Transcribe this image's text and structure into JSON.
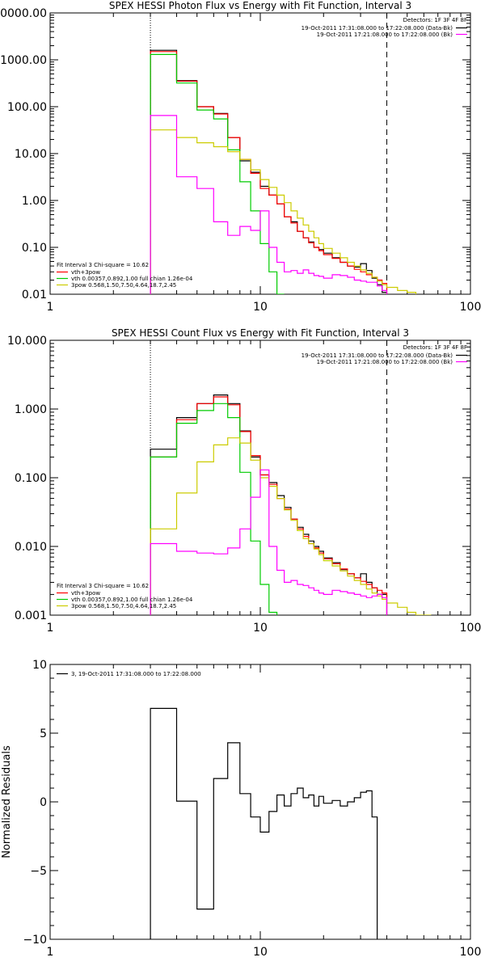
{
  "chart_data": [
    {
      "type": "line",
      "title": "SPEX HESSI Photon Flux vs Energy with Fit Function, Interval 3",
      "xscale": "log",
      "yscale": "log",
      "xlim": [
        1,
        100
      ],
      "ylim": [
        0.01,
        10000
      ],
      "x_ticks": [
        "1",
        "10",
        "100"
      ],
      "y_ticks": [
        "0.01",
        "0.10",
        "1.00",
        "10.00",
        "100.00",
        "1000.00",
        "10000.00"
      ],
      "legend_top": {
        "header": "Detectors: 1F 3F 4F 8F",
        "items": [
          {
            "text": "19-Oct-2011 17:31:08.000 to 17:22:08.000 (Data-Bk)",
            "color": "#000000"
          },
          {
            "text": "19-Oct-2011 17:21:08.000 to 17:22:08.000 (Bk)",
            "color": "#ff00ff"
          }
        ]
      },
      "legend_bottom": {
        "header": "Fit Interval 3   Chi-square = 10.62",
        "items": [
          {
            "text": "vth+3pow",
            "color": "#ff0000"
          },
          {
            "text": "vth 0.00357,0.892,1.00   full chian 1.26e-04",
            "color": "#00cc00"
          },
          {
            "text": "3pow 0.568,1.50,7.50,4.64,18.7,2.45",
            "color": "#cccc00"
          }
        ]
      },
      "reference_lines": [
        {
          "x": 3,
          "style": "dotted"
        },
        {
          "x": 40,
          "style": "dashed"
        }
      ],
      "edges": [
        3,
        4,
        5,
        6,
        7,
        8,
        9,
        10,
        11,
        12,
        13,
        14,
        15,
        16,
        17,
        18,
        19,
        20,
        22,
        24,
        26,
        28,
        30,
        32,
        34,
        36,
        38,
        40,
        45,
        50,
        55
      ],
      "series": [
        {
          "color": "#000000",
          "values": [
            1600,
            360,
            100,
            72,
            22,
            7.0,
            4.0,
            2.0,
            1.3,
            0.85,
            0.45,
            0.35,
            0.22,
            0.16,
            0.13,
            0.1,
            0.09,
            0.075,
            0.06,
            0.048,
            0.04,
            0.038,
            0.045,
            0.032,
            0.022,
            0.016,
            0.011,
            null,
            null,
            null
          ]
        },
        {
          "color": "#ff0000",
          "values": [
            1500,
            350,
            100,
            70,
            22,
            7.5,
            3.8,
            1.8,
            1.3,
            0.85,
            0.45,
            0.33,
            0.22,
            0.16,
            0.125,
            0.1,
            0.085,
            0.07,
            0.058,
            0.048,
            0.04,
            0.034,
            0.03,
            0.026,
            0.023,
            0.02,
            0.017,
            null,
            null,
            null
          ]
        },
        {
          "color": "#00cc00",
          "values": [
            1300,
            320,
            85,
            55,
            12,
            2.5,
            0.6,
            0.12,
            0.03,
            0.008,
            null,
            null,
            null,
            null,
            null,
            null,
            null,
            null,
            null,
            null,
            null,
            null,
            null,
            null,
            null,
            null,
            null,
            null,
            null,
            null
          ]
        },
        {
          "color": "#cccc00",
          "values": [
            32,
            22,
            17,
            14,
            11,
            7.5,
            4.5,
            2.8,
            1.9,
            1.3,
            0.9,
            0.6,
            0.42,
            0.3,
            0.22,
            0.16,
            0.12,
            0.095,
            0.075,
            0.06,
            0.048,
            0.04,
            0.033,
            0.028,
            0.023,
            0.019,
            0.016,
            0.014,
            0.012,
            0.011
          ]
        },
        {
          "color": "#ff00ff",
          "values": [
            65,
            3.2,
            1.8,
            0.35,
            0.18,
            0.28,
            0.23,
            0.6,
            0.1,
            0.048,
            0.03,
            0.032,
            0.028,
            0.033,
            0.028,
            0.025,
            0.024,
            0.022,
            0.026,
            0.025,
            0.023,
            0.02,
            0.019,
            0.018,
            0.018,
            0.015,
            0.012,
            null,
            null,
            null
          ]
        }
      ]
    },
    {
      "type": "line",
      "title": "SPEX HESSI Count Flux vs Energy with Fit Function, Interval 3",
      "xscale": "log",
      "yscale": "log",
      "xlim": [
        1,
        100
      ],
      "ylim": [
        0.001,
        10
      ],
      "x_ticks": [
        "1",
        "10",
        "100"
      ],
      "y_ticks": [
        "0.001",
        "0.010",
        "0.100",
        "1.000",
        "10.000"
      ],
      "legend_top": {
        "header": "Detectors: 1F 3F 4F 8F",
        "items": [
          {
            "text": "19-Oct-2011 17:31:08.000 to 17:22:08.000 (Data-Bk)",
            "color": "#000000"
          },
          {
            "text": "19-Oct-2011 17:21:08.000 to 17:22:08.000 (Bk)",
            "color": "#ff00ff"
          }
        ]
      },
      "legend_bottom": {
        "header": "Fit Interval 3   Chi-square = 10.62",
        "items": [
          {
            "text": "vth+3pow",
            "color": "#ff0000"
          },
          {
            "text": "vth 0.00357,0.892,1.00   full chian 1.26e-04",
            "color": "#00cc00"
          },
          {
            "text": "3pow 0.568,1.50,7.50,4.64,18.7,2.45",
            "color": "#cccc00"
          }
        ]
      },
      "reference_lines": [
        {
          "x": 3,
          "style": "dotted"
        },
        {
          "x": 40,
          "style": "dashed"
        }
      ],
      "edges": [
        3,
        4,
        5,
        6,
        7,
        8,
        9,
        10,
        11,
        12,
        13,
        14,
        15,
        16,
        17,
        18,
        19,
        20,
        22,
        24,
        26,
        28,
        30,
        32,
        34,
        36,
        38,
        40,
        45,
        50,
        55,
        60,
        65
      ],
      "series": [
        {
          "color": "#000000",
          "values": [
            0.26,
            0.75,
            1.2,
            1.6,
            1.2,
            0.48,
            0.2,
            0.11,
            0.085,
            0.055,
            0.037,
            0.025,
            0.019,
            0.015,
            0.012,
            0.01,
            0.0085,
            0.0068,
            0.0058,
            0.0046,
            0.004,
            0.0035,
            0.004,
            0.003,
            0.0025,
            0.002,
            0.002,
            null,
            null,
            null,
            null,
            null
          ]
        },
        {
          "color": "#ff0000",
          "values": [
            0.2,
            0.7,
            1.2,
            1.5,
            1.15,
            0.47,
            0.21,
            0.11,
            0.08,
            0.05,
            0.035,
            0.025,
            0.018,
            0.014,
            0.011,
            0.0095,
            0.008,
            0.0066,
            0.0056,
            0.0047,
            0.004,
            0.0035,
            0.0031,
            0.0028,
            0.0025,
            0.0023,
            0.0021,
            null,
            null,
            null,
            null,
            null
          ]
        },
        {
          "color": "#00cc00",
          "values": [
            0.2,
            0.62,
            0.95,
            1.2,
            0.75,
            0.12,
            0.012,
            0.0028,
            0.0011,
            null,
            null,
            null,
            null,
            null,
            null,
            null,
            null,
            null,
            null,
            null,
            null,
            null,
            null,
            null,
            null,
            null,
            null,
            null,
            null,
            null,
            null,
            null
          ]
        },
        {
          "color": "#cccc00",
          "values": [
            0.018,
            0.06,
            0.17,
            0.3,
            0.38,
            0.32,
            0.18,
            0.1,
            0.075,
            0.05,
            0.034,
            0.024,
            0.017,
            0.013,
            0.011,
            0.0092,
            0.0076,
            0.0062,
            0.0052,
            0.0044,
            0.0037,
            0.0032,
            0.0028,
            0.0024,
            0.0021,
            0.0019,
            0.0017,
            0.0015,
            0.0013,
            0.0011,
            0.001,
            0.0009
          ]
        },
        {
          "color": "#ff00ff",
          "values": [
            0.011,
            0.0085,
            0.008,
            0.0078,
            0.0095,
            0.018,
            0.052,
            0.13,
            0.01,
            0.0045,
            0.003,
            0.0032,
            0.0028,
            0.0027,
            0.0025,
            0.0023,
            0.0021,
            0.002,
            0.0023,
            0.0022,
            0.0021,
            0.002,
            0.0019,
            0.0018,
            0.0019,
            0.002,
            0.0018,
            null,
            null,
            null,
            null,
            null
          ]
        }
      ]
    },
    {
      "type": "line",
      "ylabel": "Normalized Residuals",
      "xscale": "log",
      "yscale": "linear",
      "xlim": [
        1,
        100
      ],
      "ylim": [
        -10,
        10
      ],
      "x_ticks": [
        "1",
        "10",
        "100"
      ],
      "y_ticks": [
        "-10",
        "-5",
        "0",
        "5",
        "10"
      ],
      "legend": {
        "text": "3, 19-Oct-2011 17:31:08.000 to 17:22:08.000",
        "color": "#000000"
      },
      "edges": [
        3,
        4,
        5,
        6,
        7,
        8,
        9,
        10,
        11,
        12,
        13,
        14,
        15,
        16,
        17,
        18,
        19,
        20,
        22,
        24,
        26,
        28,
        30,
        32,
        34,
        36,
        38,
        40,
        43
      ],
      "series": [
        {
          "color": "#000000",
          "values": [
            6.8,
            0.05,
            -7.8,
            1.7,
            4.3,
            0.6,
            -1.1,
            -2.2,
            -0.7,
            0.5,
            -0.3,
            0.6,
            1.0,
            0.3,
            0.5,
            -0.3,
            0.4,
            -0.1,
            0.1,
            -0.3,
            0.0,
            0.3,
            0.7,
            0.8,
            -1.1,
            null,
            null,
            null
          ]
        }
      ]
    }
  ]
}
